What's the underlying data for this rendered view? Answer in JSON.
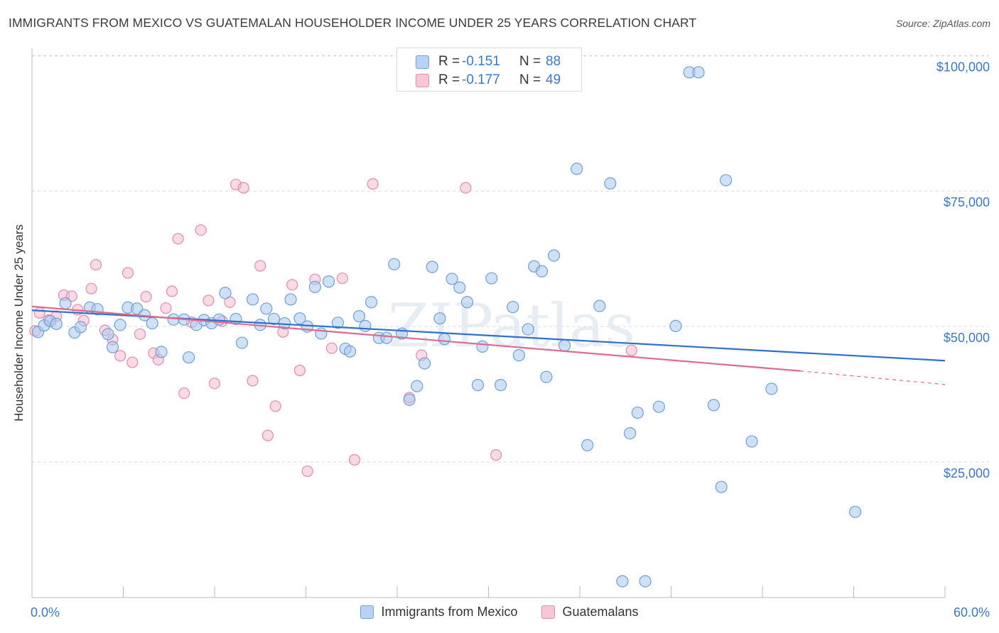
{
  "title": "IMMIGRANTS FROM MEXICO VS GUATEMALAN HOUSEHOLDER INCOME UNDER 25 YEARS CORRELATION CHART",
  "source": "Source: ZipAtlas.com",
  "watermark": "ZIPatlas",
  "legend_top": [
    {
      "r_label": "R =",
      "r_value": "-0.151",
      "n_label": "N =",
      "n_value": "88"
    },
    {
      "r_label": "R =",
      "r_value": "-0.177",
      "n_label": "N =",
      "n_value": "49"
    }
  ],
  "legend_bottom": [
    "Immigrants from Mexico",
    "Guatemalans"
  ],
  "colors": {
    "blue_fill": "#a8c8f0",
    "blue_stroke": "#6f9fdc",
    "blue_line": "#2f6fcf",
    "pink_fill": "#f6b6c9",
    "pink_stroke": "#e88aa8",
    "pink_line": "#e0698f",
    "tick_text": "#3a78c8",
    "grid": "#d8d8d8"
  },
  "chart_data": {
    "type": "scatter",
    "title": "IMMIGRANTS FROM MEXICO VS GUATEMALAN HOUSEHOLDER INCOME UNDER 25 YEARS CORRELATION CHART",
    "xlabel": "",
    "ylabel": "Householder Income Under 25 years",
    "xlim": [
      0,
      60
    ],
    "ylim": [
      0,
      102000
    ],
    "x_tick_labels": [
      "0.0%",
      "60.0%"
    ],
    "y_ticks": [
      25000,
      50000,
      75000,
      100000
    ],
    "y_tick_labels": [
      "$25,000",
      "$50,000",
      "$75,000",
      "$100,000"
    ],
    "grid": "horizontal dashed",
    "legend": "top-center",
    "series": [
      {
        "name": "Immigrants from Mexico",
        "r": -0.151,
        "n": 88,
        "trend": {
          "x": [
            0,
            60
          ],
          "y": [
            53000,
            43700
          ]
        },
        "points": [
          [
            0.4,
            49000
          ],
          [
            0.8,
            50200
          ],
          [
            1.2,
            51000
          ],
          [
            1.6,
            50500
          ],
          [
            2.2,
            54300
          ],
          [
            2.8,
            48900
          ],
          [
            3.2,
            49900
          ],
          [
            3.8,
            53500
          ],
          [
            4.3,
            53200
          ],
          [
            5.0,
            48600
          ],
          [
            5.3,
            46200
          ],
          [
            5.8,
            50300
          ],
          [
            6.3,
            53500
          ],
          [
            6.9,
            53300
          ],
          [
            7.4,
            52100
          ],
          [
            7.9,
            50600
          ],
          [
            8.5,
            45300
          ],
          [
            9.3,
            51300
          ],
          [
            10.0,
            51300
          ],
          [
            10.3,
            44300
          ],
          [
            10.8,
            50300
          ],
          [
            11.3,
            51200
          ],
          [
            11.8,
            50600
          ],
          [
            12.3,
            51300
          ],
          [
            12.7,
            56200
          ],
          [
            13.4,
            51400
          ],
          [
            13.8,
            47000
          ],
          [
            14.5,
            55000
          ],
          [
            15.0,
            50300
          ],
          [
            15.4,
            53300
          ],
          [
            15.9,
            51400
          ],
          [
            16.6,
            50600
          ],
          [
            17.0,
            55000
          ],
          [
            17.6,
            51500
          ],
          [
            18.1,
            50000
          ],
          [
            18.6,
            57300
          ],
          [
            19.0,
            48700
          ],
          [
            19.5,
            58300
          ],
          [
            20.1,
            50700
          ],
          [
            20.6,
            45900
          ],
          [
            20.9,
            45400
          ],
          [
            21.5,
            51900
          ],
          [
            21.9,
            50100
          ],
          [
            22.3,
            54500
          ],
          [
            22.8,
            47900
          ],
          [
            23.3,
            47900
          ],
          [
            23.8,
            61500
          ],
          [
            24.3,
            48700
          ],
          [
            24.8,
            36500
          ],
          [
            25.3,
            39000
          ],
          [
            25.8,
            43200
          ],
          [
            26.3,
            61000
          ],
          [
            26.8,
            51500
          ],
          [
            27.1,
            47700
          ],
          [
            27.6,
            58800
          ],
          [
            28.1,
            57200
          ],
          [
            28.6,
            54500
          ],
          [
            29.3,
            39200
          ],
          [
            29.6,
            46300
          ],
          [
            30.2,
            58900
          ],
          [
            30.8,
            39200
          ],
          [
            31.6,
            53600
          ],
          [
            32.0,
            44700
          ],
          [
            32.6,
            49500
          ],
          [
            33.0,
            61100
          ],
          [
            33.5,
            60200
          ],
          [
            33.8,
            40700
          ],
          [
            34.3,
            63100
          ],
          [
            35.0,
            46500
          ],
          [
            35.8,
            79100
          ],
          [
            36.5,
            28100
          ],
          [
            37.3,
            53800
          ],
          [
            38.0,
            76400
          ],
          [
            38.8,
            3000
          ],
          [
            39.3,
            30300
          ],
          [
            39.8,
            34100
          ],
          [
            40.3,
            3000
          ],
          [
            41.2,
            35200
          ],
          [
            42.3,
            50100
          ],
          [
            43.2,
            96900
          ],
          [
            43.8,
            96900
          ],
          [
            44.8,
            35500
          ],
          [
            45.3,
            20400
          ],
          [
            45.6,
            77000
          ],
          [
            47.3,
            28800
          ],
          [
            48.6,
            38500
          ],
          [
            54.1,
            15800
          ]
        ]
      },
      {
        "name": "Guatemalans",
        "r": -0.177,
        "n": 49,
        "trend": {
          "x": [
            0,
            50.5
          ],
          "y": [
            53700,
            41800
          ]
        },
        "trend_dashed_extension": {
          "x": [
            50.5,
            60
          ],
          "y": [
            41800,
            39300
          ]
        },
        "points": [
          [
            0.2,
            49200
          ],
          [
            0.5,
            52500
          ],
          [
            1.1,
            51200
          ],
          [
            1.6,
            51900
          ],
          [
            2.1,
            55800
          ],
          [
            2.6,
            55600
          ],
          [
            3.0,
            53100
          ],
          [
            3.4,
            51100
          ],
          [
            3.9,
            57000
          ],
          [
            4.2,
            61400
          ],
          [
            4.8,
            49300
          ],
          [
            5.3,
            47600
          ],
          [
            5.8,
            44600
          ],
          [
            6.3,
            59900
          ],
          [
            6.6,
            43400
          ],
          [
            7.1,
            48600
          ],
          [
            7.5,
            55500
          ],
          [
            8.0,
            45100
          ],
          [
            8.3,
            43900
          ],
          [
            8.8,
            53400
          ],
          [
            9.2,
            56500
          ],
          [
            9.6,
            66200
          ],
          [
            10.0,
            37700
          ],
          [
            10.5,
            50800
          ],
          [
            11.1,
            67800
          ],
          [
            11.6,
            54800
          ],
          [
            12.0,
            39500
          ],
          [
            12.5,
            51000
          ],
          [
            13.0,
            54500
          ],
          [
            13.4,
            76200
          ],
          [
            13.9,
            75600
          ],
          [
            14.5,
            40000
          ],
          [
            15.0,
            61200
          ],
          [
            15.5,
            29900
          ],
          [
            16.0,
            35300
          ],
          [
            16.5,
            49000
          ],
          [
            17.1,
            57700
          ],
          [
            17.6,
            41900
          ],
          [
            18.1,
            23300
          ],
          [
            18.6,
            58700
          ],
          [
            19.7,
            46000
          ],
          [
            20.4,
            58900
          ],
          [
            21.2,
            25400
          ],
          [
            22.4,
            76300
          ],
          [
            24.8,
            36900
          ],
          [
            25.6,
            44700
          ],
          [
            28.5,
            75600
          ],
          [
            30.5,
            26300
          ],
          [
            39.4,
            45600
          ]
        ]
      }
    ]
  }
}
